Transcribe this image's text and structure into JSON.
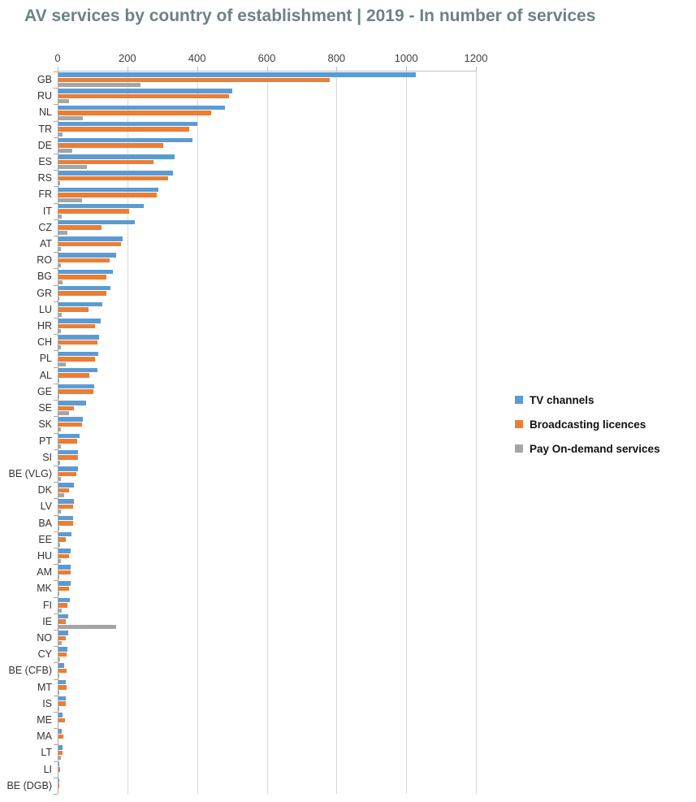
{
  "chart_data": {
    "type": "bar",
    "orientation": "horizontal",
    "title": "AV services by country of establishment | 2019 - In number of services",
    "x_axis": {
      "position": "top",
      "min": 0,
      "max": 1200,
      "tick_interval": 200,
      "ticks": [
        "0",
        "200",
        "400",
        "600",
        "800",
        "1000",
        "1200"
      ]
    },
    "grid": "vertical gridlines every 200, light gray",
    "legend": {
      "position": "center-right",
      "marker": "square"
    },
    "categories": [
      "GB",
      "RU",
      "NL",
      "TR",
      "DE",
      "ES",
      "RS",
      "FR",
      "IT",
      "CZ",
      "AT",
      "RO",
      "BG",
      "GR",
      "LU",
      "HR",
      "CH",
      "PL",
      "AL",
      "GE",
      "SE",
      "SK",
      "PT",
      "SI",
      "BE (VLG)",
      "DK",
      "LV",
      "BA",
      "EE",
      "HU",
      "AM",
      "MK",
      "FI",
      "IE",
      "NO",
      "CY",
      "BE (CFB)",
      "MT",
      "IS",
      "ME",
      "MA",
      "LT",
      "LI",
      "BE (DGB)"
    ],
    "series": [
      {
        "name": "TV channels",
        "color": "#5B9BD5",
        "values": [
          1027,
          500,
          478,
          400,
          385,
          335,
          330,
          286,
          245,
          220,
          184,
          165,
          157,
          149,
          127,
          122,
          116,
          114,
          111,
          102,
          80,
          69,
          61,
          57,
          55,
          45,
          44,
          43,
          37,
          36,
          35,
          34,
          33,
          28,
          27,
          26,
          17,
          20,
          21,
          12,
          10,
          11,
          3,
          1
        ]
      },
      {
        "name": "Broadcasting licences",
        "color": "#ED7D31",
        "values": [
          780,
          490,
          440,
          375,
          300,
          273,
          315,
          283,
          202,
          124,
          179,
          147,
          137,
          137,
          86,
          104,
          111,
          104,
          89,
          100,
          45,
          67,
          53,
          55,
          51,
          31,
          41,
          43,
          20,
          30,
          35,
          31,
          25,
          20,
          22,
          24,
          24,
          23,
          20,
          18,
          14,
          11,
          5,
          1
        ]
      },
      {
        "name": "Pay On-demand services",
        "color": "#A5A5A5",
        "values": [
          235,
          30,
          70,
          12,
          40,
          82,
          5,
          67,
          10,
          26,
          6,
          6,
          12,
          3,
          9,
          8,
          8,
          22,
          2,
          2,
          31,
          6,
          8,
          4,
          6,
          16,
          8,
          2,
          4,
          6,
          1,
          1,
          9,
          165,
          9,
          4,
          1,
          1,
          3,
          0,
          0,
          6,
          0,
          0
        ]
      }
    ]
  },
  "styles": {
    "title_color": "#6E8184",
    "axis_line_color": "#BFBFBF",
    "zero_line_color": "#A6A6A6",
    "gridline_color": "#D9D9D9",
    "tick_label_color": "#404040",
    "category_label_color": "#333333",
    "legend_text_color": "#111111",
    "background": "#FFFFFF"
  }
}
